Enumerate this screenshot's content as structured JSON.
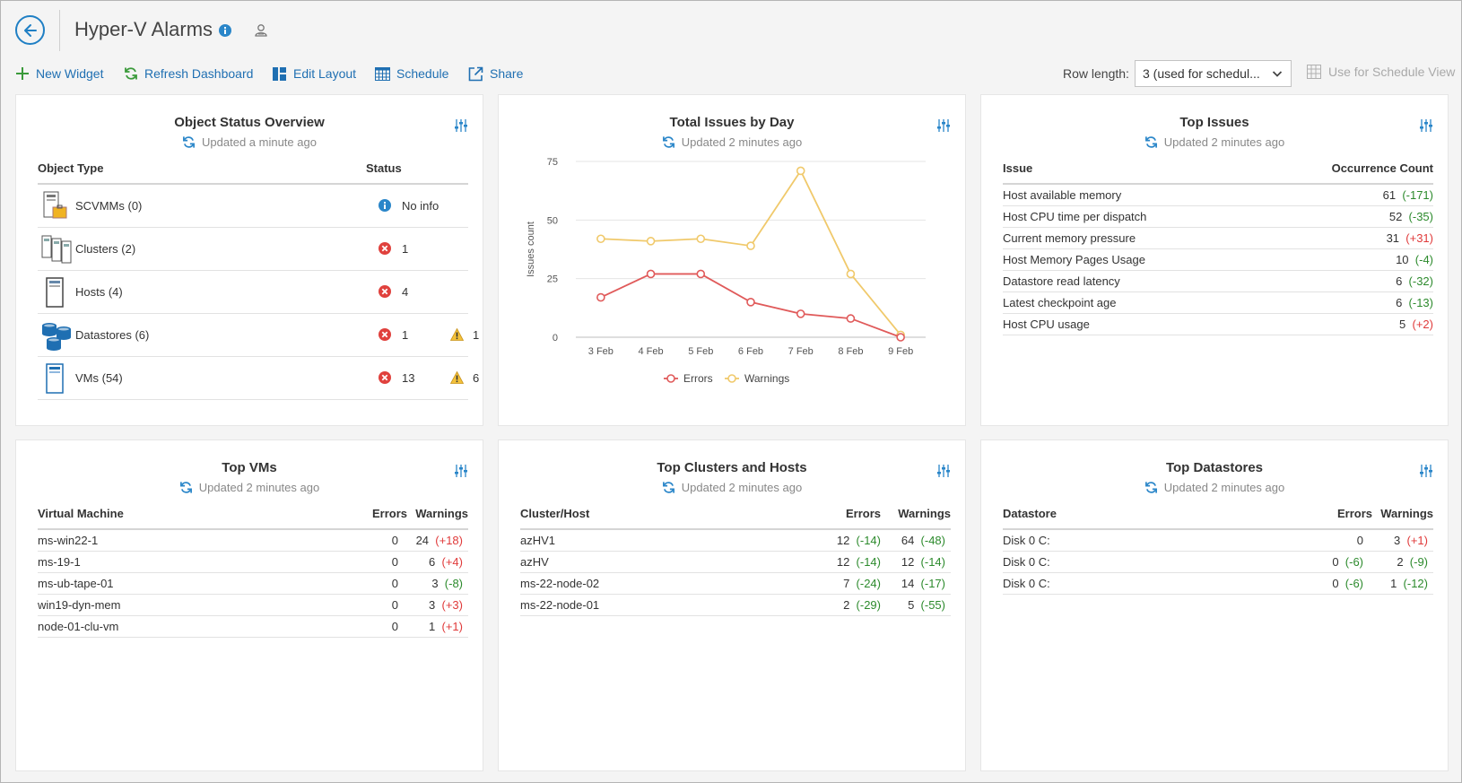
{
  "header": {
    "title": "Hyper-V Alarms"
  },
  "toolbar": {
    "new_widget": "New Widget",
    "refresh_dashboard": "Refresh Dashboard",
    "edit_layout": "Edit Layout",
    "schedule": "Schedule",
    "share": "Share",
    "row_length_label": "Row length:",
    "row_length_value": "3 (used for schedul...",
    "use_for_schedule_view": "Use for Schedule View"
  },
  "colors": {
    "accent": "#1f7fc4",
    "errors": "#e05a5a",
    "warnings": "#f0c96b",
    "negative_delta": "#2c8a2c",
    "positive_delta": "#e03a3a"
  },
  "object_status": {
    "title": "Object Status Overview",
    "updated": "Updated a minute ago",
    "col_type": "Object Type",
    "col_status": "Status",
    "rows": [
      {
        "label": "SCVMMs (0)",
        "icon": "scvmm-icon",
        "status": "info",
        "status_value": "No info",
        "warnings": ""
      },
      {
        "label": "Clusters (2)",
        "icon": "cluster-icon",
        "status": "error",
        "status_value": "1",
        "warnings": ""
      },
      {
        "label": "Hosts (4)",
        "icon": "host-icon",
        "status": "error",
        "status_value": "4",
        "warnings": ""
      },
      {
        "label": "Datastores (6)",
        "icon": "datastore-icon",
        "status": "error",
        "status_value": "1",
        "warnings": "1"
      },
      {
        "label": "VMs (54)",
        "icon": "vm-icon",
        "status": "error",
        "status_value": "13",
        "warnings": "6"
      }
    ]
  },
  "issues_by_day": {
    "title": "Total Issues by Day",
    "updated": "Updated 2 minutes ago",
    "chart_data": {
      "type": "line",
      "title": "Total Issues by Day",
      "ylabel": "Issues count",
      "xlabel": "",
      "categories": [
        "3 Feb",
        "4 Feb",
        "5 Feb",
        "6 Feb",
        "7 Feb",
        "8 Feb",
        "9 Feb"
      ],
      "ylim": [
        0,
        75
      ],
      "yticks": [
        "0",
        "25",
        "50",
        "75"
      ],
      "grid": true,
      "legend": "bottom",
      "series": [
        {
          "name": "Errors",
          "color": "#e05a5a",
          "values": [
            17,
            27,
            27,
            15,
            10,
            8,
            0
          ]
        },
        {
          "name": "Warnings",
          "color": "#f0c96b",
          "values": [
            42,
            41,
            42,
            39,
            71,
            27,
            1
          ]
        }
      ]
    }
  },
  "top_issues": {
    "title": "Top Issues",
    "updated": "Updated 2 minutes ago",
    "col_issue": "Issue",
    "col_count": "Occurrence Count",
    "rows": [
      {
        "issue": "Host available memory",
        "count": "61",
        "delta": "(-171)",
        "sign": "neg"
      },
      {
        "issue": "Host CPU time per dispatch",
        "count": "52",
        "delta": "(-35)",
        "sign": "neg"
      },
      {
        "issue": "Current memory pressure",
        "count": "31",
        "delta": "(+31)",
        "sign": "pos"
      },
      {
        "issue": "Host Memory Pages Usage",
        "count": "10",
        "delta": "(-4)",
        "sign": "neg"
      },
      {
        "issue": "Datastore read latency",
        "count": "6",
        "delta": "(-32)",
        "sign": "neg"
      },
      {
        "issue": "Latest checkpoint age",
        "count": "6",
        "delta": "(-13)",
        "sign": "neg"
      },
      {
        "issue": "Host CPU usage",
        "count": "5",
        "delta": "(+2)",
        "sign": "pos"
      }
    ]
  },
  "top_vms": {
    "title": "Top VMs",
    "updated": "Updated 2 minutes ago",
    "col_name": "Virtual Machine",
    "col_errors": "Errors",
    "col_warnings": "Warnings",
    "rows": [
      {
        "name": "ms-win22-1",
        "errors": "0",
        "errors_delta": "",
        "errors_sign": "",
        "warnings": "24",
        "warnings_delta": "(+18)",
        "warnings_sign": "pos"
      },
      {
        "name": "ms-19-1",
        "errors": "0",
        "errors_delta": "",
        "errors_sign": "",
        "warnings": "6",
        "warnings_delta": "(+4)",
        "warnings_sign": "pos"
      },
      {
        "name": "ms-ub-tape-01",
        "errors": "0",
        "errors_delta": "",
        "errors_sign": "",
        "warnings": "3",
        "warnings_delta": "(-8)",
        "warnings_sign": "neg"
      },
      {
        "name": "win19-dyn-mem",
        "errors": "0",
        "errors_delta": "",
        "errors_sign": "",
        "warnings": "3",
        "warnings_delta": "(+3)",
        "warnings_sign": "pos"
      },
      {
        "name": "node-01-clu-vm",
        "errors": "0",
        "errors_delta": "",
        "errors_sign": "",
        "warnings": "1",
        "warnings_delta": "(+1)",
        "warnings_sign": "pos"
      }
    ]
  },
  "top_clusters": {
    "title": "Top Clusters and Hosts",
    "updated": "Updated 2 minutes ago",
    "col_name": "Cluster/Host",
    "col_errors": "Errors",
    "col_warnings": "Warnings",
    "rows": [
      {
        "name": "azHV1",
        "errors": "12",
        "errors_delta": "(-14)",
        "errors_sign": "neg",
        "warnings": "64",
        "warnings_delta": "(-48)",
        "warnings_sign": "neg"
      },
      {
        "name": "azHV",
        "errors": "12",
        "errors_delta": "(-14)",
        "errors_sign": "neg",
        "warnings": "12",
        "warnings_delta": "(-14)",
        "warnings_sign": "neg"
      },
      {
        "name": "ms-22-node-02",
        "errors": "7",
        "errors_delta": "(-24)",
        "errors_sign": "neg",
        "warnings": "14",
        "warnings_delta": "(-17)",
        "warnings_sign": "neg"
      },
      {
        "name": "ms-22-node-01",
        "errors": "2",
        "errors_delta": "(-29)",
        "errors_sign": "neg",
        "warnings": "5",
        "warnings_delta": "(-55)",
        "warnings_sign": "neg"
      }
    ]
  },
  "top_datastores": {
    "title": "Top Datastores",
    "updated": "Updated 2 minutes ago",
    "col_name": "Datastore",
    "col_errors": "Errors",
    "col_warnings": "Warnings",
    "rows": [
      {
        "name": "Disk 0 C:",
        "errors": "0",
        "errors_delta": "",
        "errors_sign": "",
        "warnings": "3",
        "warnings_delta": "(+1)",
        "warnings_sign": "pos"
      },
      {
        "name": "Disk 0 C:",
        "errors": "0",
        "errors_delta": "(-6)",
        "errors_sign": "neg",
        "warnings": "2",
        "warnings_delta": "(-9)",
        "warnings_sign": "neg"
      },
      {
        "name": "Disk 0 C:",
        "errors": "0",
        "errors_delta": "(-6)",
        "errors_sign": "neg",
        "warnings": "1",
        "warnings_delta": "(-12)",
        "warnings_sign": "neg"
      }
    ]
  }
}
